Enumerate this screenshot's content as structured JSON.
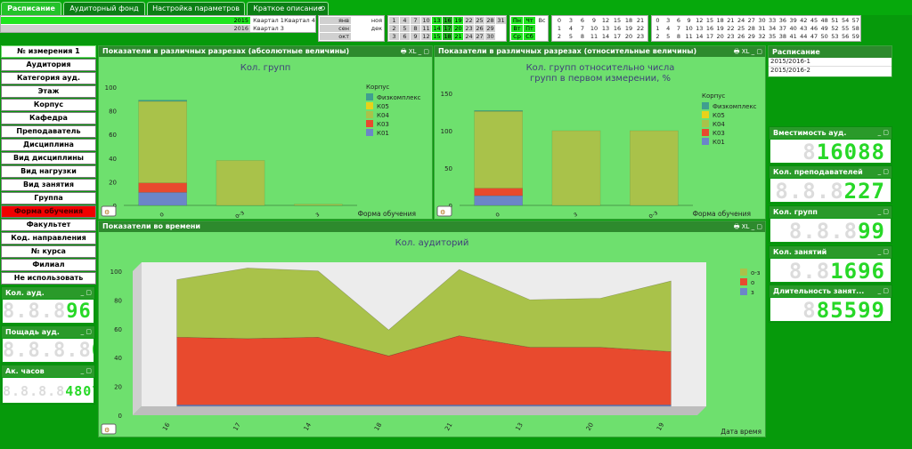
{
  "tabs": [
    {
      "label": "Расписание",
      "active": true
    },
    {
      "label": "Аудиторный фонд"
    },
    {
      "label": "Настройка параметров"
    },
    {
      "label": "Краткое описание"
    }
  ],
  "years": [
    {
      "year": "2015",
      "q1": "Квартал 1",
      "q4": "Квартал 4"
    },
    {
      "year": "2016",
      "q1": "Квартал 3",
      "q4": ""
    }
  ],
  "months": [
    [
      "янв",
      "ноя"
    ],
    [
      "сен",
      "дек"
    ],
    [
      "окт",
      ""
    ]
  ],
  "days_grid": [
    [
      "1",
      "4",
      "7",
      "10",
      "13",
      "16",
      "19",
      "22",
      "25",
      "28",
      "31"
    ],
    [
      "2",
      "5",
      "8",
      "11",
      "14",
      "17",
      "20",
      "23",
      "26",
      "29",
      ""
    ],
    [
      "3",
      "6",
      "9",
      "12",
      "15",
      "18",
      "21",
      "24",
      "27",
      "30",
      ""
    ]
  ],
  "weekdays": [
    [
      "Пн",
      "Чт",
      "Вс"
    ],
    [
      "Вт",
      "Пт",
      ""
    ],
    [
      "Ср",
      "Сб",
      ""
    ]
  ],
  "weeks_a": [
    [
      "0",
      "3",
      "6",
      "9",
      "12",
      "15",
      "18",
      "21"
    ],
    [
      "1",
      "4",
      "7",
      "10",
      "13",
      "16",
      "19",
      "22"
    ],
    [
      "2",
      "5",
      "8",
      "11",
      "14",
      "17",
      "20",
      "23"
    ]
  ],
  "weeks_b": [
    [
      "0",
      "3",
      "6",
      "9",
      "12",
      "15",
      "18",
      "21",
      "24",
      "27",
      "30",
      "33",
      "36",
      "39",
      "42",
      "45",
      "48",
      "51",
      "54",
      "57"
    ],
    [
      "1",
      "4",
      "7",
      "10",
      "13",
      "16",
      "19",
      "22",
      "25",
      "28",
      "31",
      "34",
      "37",
      "40",
      "43",
      "46",
      "49",
      "52",
      "55",
      "58"
    ],
    [
      "2",
      "5",
      "8",
      "11",
      "14",
      "17",
      "20",
      "23",
      "26",
      "29",
      "32",
      "35",
      "38",
      "41",
      "44",
      "47",
      "50",
      "53",
      "56",
      "59"
    ]
  ],
  "left_buttons": [
    "№ измерения 1",
    "Аудитория",
    "Категория ауд.",
    "Этаж",
    "Корпус",
    "Кафедра",
    "Преподаватель",
    "Дисциплина",
    "Вид дисциплины",
    "Вид нагрузки",
    "Вид занятия",
    "Группа",
    "Форма обучения",
    "Факультет",
    "Код. направления",
    "№ курса",
    "Филиал",
    "Не использовать"
  ],
  "left_kpis": [
    {
      "label": "Кол. ауд.",
      "ghost": "8.8.8",
      "value": "96"
    },
    {
      "label": "Пощадь ауд.",
      "ghost": "8.8.8.8",
      "value": "0"
    },
    {
      "label": "Ак. часов",
      "ghost": "8.8.8.8",
      "value": "4807"
    }
  ],
  "right_kpis": [
    {
      "label": "Вместимость ауд.",
      "ghost": "8",
      "value": "16088"
    },
    {
      "label": "Кол. преподавателей",
      "ghost": "8.8.8",
      "value": "227"
    },
    {
      "label": "Кол. групп",
      "ghost": "8.8.8",
      "value": "99"
    },
    {
      "label": "Кол. занятий",
      "ghost": "8.8",
      "value": "1696"
    },
    {
      "label": "Длительность занят...",
      "ghost": "8",
      "value": "85599"
    }
  ],
  "schedule": {
    "title": "Расписание",
    "items": [
      "2015/2016-1",
      "2015/2016-2"
    ]
  },
  "panels": {
    "abs_title": "Показатели в различных разрезах (абсолютные величины)",
    "rel_title": "Показатели в различных разрезах (относительные величины)",
    "time_title": "Показатели во времени",
    "panel_icons": "🖶 XL _ ▢"
  },
  "chart_data": [
    {
      "type": "bar",
      "title": "Кол. групп",
      "xlabel": "Форма обучения",
      "categories": [
        "о",
        "о-з",
        "з"
      ],
      "legend_title": "Корпус",
      "legend": [
        "Физкомплекс",
        "К05",
        "К04",
        "К03",
        "К01"
      ],
      "ylim": [
        0,
        100
      ],
      "yticks": [
        0,
        20,
        40,
        60,
        80,
        100
      ],
      "series": [
        {
          "name": "К01",
          "color": "#6b86c8",
          "values": [
            11,
            0,
            0
          ]
        },
        {
          "name": "К03",
          "color": "#e84a2e",
          "values": [
            8,
            0,
            0
          ]
        },
        {
          "name": "К04",
          "color": "#a9c24a",
          "values": [
            69,
            38,
            1
          ]
        },
        {
          "name": "К05",
          "color": "#e8d21a",
          "values": [
            0,
            0,
            0
          ]
        },
        {
          "name": "Физкомплекс",
          "color": "#3f9f8f",
          "values": [
            1,
            0,
            0
          ]
        }
      ]
    },
    {
      "type": "bar",
      "title": "Кол. групп относительно числа групп в первом измерении, %",
      "xlabel": "Форма обучения",
      "categories": [
        "о",
        "з",
        "о-з"
      ],
      "legend_title": "Корпус",
      "legend": [
        "Физкомплекс",
        "К05",
        "К04",
        "К03",
        "К01"
      ],
      "ylim": [
        0,
        150
      ],
      "yticks": [
        0,
        50,
        100,
        150
      ],
      "series": [
        {
          "name": "К01",
          "color": "#6b86c8",
          "values": [
            13,
            0,
            0
          ]
        },
        {
          "name": "К03",
          "color": "#e84a2e",
          "values": [
            10,
            0,
            0
          ]
        },
        {
          "name": "К04",
          "color": "#a9c24a",
          "values": [
            103,
            100,
            100
          ]
        },
        {
          "name": "К05",
          "color": "#e8d21a",
          "values": [
            0,
            0,
            0
          ]
        },
        {
          "name": "Физкомплекс",
          "color": "#3f9f8f",
          "values": [
            1,
            0,
            0
          ]
        }
      ]
    },
    {
      "type": "area",
      "title": "Кол. аудиторий",
      "xlabel": "Дата время",
      "categories": [
        "16",
        "17",
        "14",
        "18",
        "21",
        "13",
        "20",
        "19"
      ],
      "ylim": [
        0,
        100
      ],
      "yticks": [
        0,
        20,
        40,
        60,
        80,
        100
      ],
      "legend": [
        "о-з",
        "о",
        "з"
      ],
      "series": [
        {
          "name": "з",
          "color": "#6b86c8",
          "values": [
            1,
            1,
            1,
            1,
            1,
            1,
            1,
            1
          ]
        },
        {
          "name": "о",
          "color": "#e84a2e",
          "values": [
            47,
            46,
            47,
            34,
            48,
            40,
            40,
            37
          ]
        },
        {
          "name": "о-з",
          "color": "#a9c24a",
          "values": [
            40,
            49,
            46,
            18,
            46,
            33,
            34,
            49
          ]
        }
      ]
    }
  ]
}
